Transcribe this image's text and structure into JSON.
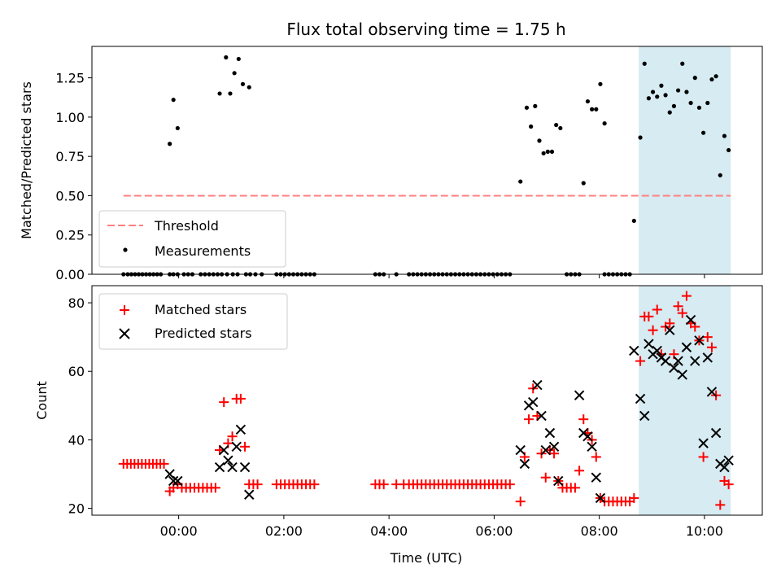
{
  "chart_data": {
    "type": "scatter",
    "title": "Flux total observing time = 1.75 h",
    "xlabel": "Time (UTC)",
    "x_ticks": [
      "00:00",
      "02:00",
      "04:00",
      "06:00",
      "08:00",
      "10:00"
    ],
    "x_tick_values_h": [
      0,
      2,
      4,
      6,
      8,
      10
    ],
    "xlim_h": [
      -1.65,
      11.1
    ],
    "highlight_span_h": [
      8.75,
      10.5
    ],
    "highlight_color": "#add8e6",
    "top": {
      "ylabel": "Matched/Predicted stars",
      "ylim": [
        0,
        1.45
      ],
      "y_ticks": [
        "0.00",
        "0.25",
        "0.50",
        "0.75",
        "1.00",
        "1.25"
      ],
      "y_tick_values": [
        0,
        0.25,
        0.5,
        0.75,
        1.0,
        1.25
      ],
      "threshold": {
        "name": "Threshold",
        "value": 0.5,
        "x_range_h": [
          -1.05,
          10.5
        ],
        "color": "#ff7f7f"
      },
      "measurements": {
        "name": "Measurements",
        "color": "#000000",
        "x": [
          -1.05,
          -0.97,
          -0.9,
          -0.83,
          -0.76,
          -0.69,
          -0.62,
          -0.55,
          -0.48,
          -0.41,
          -0.34,
          -0.17,
          -0.1,
          -0.02,
          0.1,
          0.18,
          0.26,
          0.42,
          0.5,
          0.58,
          0.66,
          0.74,
          0.82,
          0.92,
          1.03,
          1.12,
          1.28,
          1.36,
          1.46,
          1.58,
          1.86,
          1.94,
          2.02,
          2.1,
          2.18,
          2.26,
          2.34,
          2.42,
          2.5,
          2.58,
          3.74,
          3.82,
          3.9,
          4.14,
          4.38,
          4.46,
          4.54,
          4.62,
          4.7,
          4.78,
          4.86,
          4.94,
          5.02,
          5.1,
          5.18,
          5.26,
          5.34,
          5.42,
          5.5,
          5.58,
          5.66,
          5.74,
          5.82,
          5.9,
          5.98,
          6.06,
          6.14,
          6.22,
          6.3,
          7.38,
          7.46,
          7.54,
          7.62,
          8.1,
          8.18,
          8.26,
          8.34,
          8.42,
          8.5,
          8.58,
          -0.17,
          -0.1,
          -0.02,
          0.78,
          0.9,
          0.98,
          1.06,
          1.14,
          1.22,
          1.34,
          6.5,
          6.62,
          6.7,
          6.78,
          6.86,
          6.94,
          7.02,
          7.1,
          7.18,
          7.26,
          7.7,
          7.78,
          7.86,
          7.94,
          8.02,
          8.1,
          8.66,
          8.78,
          8.86,
          8.94,
          9.02,
          9.1,
          9.18,
          9.26,
          9.34,
          9.42,
          9.5,
          9.58,
          9.66,
          9.74,
          9.82,
          9.9,
          9.98,
          10.06,
          10.14,
          10.22,
          10.3,
          10.38,
          10.46
        ],
        "y": [
          0,
          0,
          0,
          0,
          0,
          0,
          0,
          0,
          0,
          0,
          0,
          0,
          0,
          0,
          0,
          0,
          0,
          0,
          0,
          0,
          0,
          0,
          0,
          0,
          0,
          0,
          0,
          0,
          0,
          0,
          0,
          0,
          0,
          0,
          0,
          0,
          0,
          0,
          0,
          0,
          0,
          0,
          0,
          0,
          0,
          0,
          0,
          0,
          0,
          0,
          0,
          0,
          0,
          0,
          0,
          0,
          0,
          0,
          0,
          0,
          0,
          0,
          0,
          0,
          0,
          0,
          0,
          0,
          0,
          0,
          0,
          0,
          0,
          0,
          0,
          0,
          0,
          0,
          0,
          0,
          0.83,
          1.11,
          0.93,
          1.15,
          1.38,
          1.15,
          1.28,
          1.37,
          1.21,
          1.19,
          0.59,
          1.06,
          0.94,
          1.07,
          0.85,
          0.77,
          0.78,
          0.78,
          0.95,
          0.93,
          0.58,
          1.1,
          1.05,
          1.05,
          1.21,
          0.96,
          0.34,
          0.87,
          1.34,
          1.12,
          1.16,
          1.13,
          1.2,
          1.14,
          1.03,
          1.07,
          1.17,
          1.34,
          1.16,
          1.09,
          1.25,
          1.06,
          0.9,
          1.09,
          1.24,
          1.26,
          0.63,
          0.88,
          0.79
        ]
      }
    },
    "bottom": {
      "ylabel": "Count",
      "ylim": [
        18,
        85
      ],
      "y_ticks": [
        "20",
        "40",
        "60",
        "80"
      ],
      "y_tick_values": [
        20,
        40,
        60,
        80
      ],
      "matched": {
        "name": "Matched stars",
        "color": "#ff0000",
        "x": [
          -1.05,
          -0.98,
          -0.91,
          -0.84,
          -0.77,
          -0.7,
          -0.63,
          -0.56,
          -0.49,
          -0.42,
          -0.35,
          -0.28,
          -0.17,
          -0.1,
          -0.02,
          0.06,
          0.14,
          0.22,
          0.3,
          0.38,
          0.46,
          0.54,
          0.62,
          0.7,
          0.78,
          0.86,
          0.94,
          1.02,
          1.1,
          1.18,
          1.26,
          1.34,
          1.42,
          1.5,
          1.86,
          1.94,
          2.02,
          2.1,
          2.18,
          2.26,
          2.34,
          2.42,
          2.5,
          2.58,
          3.74,
          3.82,
          3.9,
          4.14,
          4.28,
          4.38,
          4.46,
          4.54,
          4.62,
          4.7,
          4.78,
          4.86,
          4.94,
          5.02,
          5.1,
          5.18,
          5.26,
          5.34,
          5.42,
          5.5,
          5.58,
          5.66,
          5.74,
          5.82,
          5.9,
          5.98,
          6.06,
          6.14,
          6.22,
          6.3,
          6.5,
          6.58,
          6.66,
          6.74,
          6.82,
          6.9,
          6.98,
          7.06,
          7.14,
          7.22,
          7.3,
          7.38,
          7.46,
          7.54,
          7.62,
          7.7,
          7.78,
          7.86,
          7.94,
          8.02,
          8.1,
          8.18,
          8.26,
          8.34,
          8.42,
          8.5,
          8.58,
          8.66,
          8.78,
          8.86,
          8.94,
          9.02,
          9.1,
          9.18,
          9.26,
          9.34,
          9.42,
          9.5,
          9.58,
          9.66,
          9.74,
          9.82,
          9.9,
          9.98,
          10.06,
          10.14,
          10.22,
          10.3,
          10.38,
          10.46
        ],
        "y": [
          33,
          33,
          33,
          33,
          33,
          33,
          33,
          33,
          33,
          33,
          33,
          33,
          25,
          26,
          27,
          26,
          26,
          26,
          26,
          26,
          26,
          26,
          26,
          26,
          37,
          51,
          39,
          41,
          52,
          52,
          38,
          27,
          27,
          27,
          27,
          27,
          27,
          27,
          27,
          27,
          27,
          27,
          27,
          27,
          27,
          27,
          27,
          27,
          27,
          27,
          27,
          27,
          27,
          27,
          27,
          27,
          27,
          27,
          27,
          27,
          27,
          27,
          27,
          27,
          27,
          27,
          27,
          27,
          27,
          27,
          27,
          27,
          27,
          27,
          22,
          35,
          46,
          55,
          47,
          36,
          29,
          37,
          36,
          28,
          26,
          26,
          26,
          26,
          31,
          46,
          42,
          40,
          35,
          23,
          22,
          22,
          22,
          22,
          22,
          22,
          22,
          23,
          63,
          76,
          76,
          72,
          78,
          65,
          73,
          74,
          65,
          79,
          77,
          82,
          74,
          73,
          69,
          35,
          70,
          67,
          53,
          21,
          28,
          27
        ]
      },
      "predicted": {
        "name": "Predicted stars",
        "color": "#000000",
        "x": [
          -0.17,
          -0.1,
          -0.02,
          0.78,
          0.86,
          0.94,
          1.02,
          1.1,
          1.18,
          1.26,
          1.34,
          6.5,
          6.58,
          6.66,
          6.74,
          6.82,
          6.9,
          6.98,
          7.06,
          7.14,
          7.22,
          7.62,
          7.7,
          7.78,
          7.86,
          7.94,
          8.02,
          8.66,
          8.78,
          8.86,
          8.94,
          9.02,
          9.1,
          9.18,
          9.26,
          9.34,
          9.42,
          9.5,
          9.58,
          9.66,
          9.74,
          9.82,
          9.9,
          9.98,
          10.06,
          10.14,
          10.22,
          10.3,
          10.38,
          10.46
        ],
        "y": [
          30,
          28,
          28,
          32,
          37,
          34,
          32,
          38,
          43,
          32,
          24,
          37,
          33,
          50,
          51,
          56,
          47,
          37,
          42,
          38,
          28,
          53,
          42,
          41,
          38,
          29,
          23,
          66,
          52,
          47,
          68,
          65,
          66,
          64,
          63,
          72,
          61,
          63,
          59,
          67,
          75,
          63,
          69,
          39,
          64,
          54,
          42,
          33,
          32,
          34
        ]
      }
    },
    "legend_top": [
      "Threshold",
      "Measurements"
    ],
    "legend_bottom": [
      "Matched stars",
      "Predicted stars"
    ]
  }
}
